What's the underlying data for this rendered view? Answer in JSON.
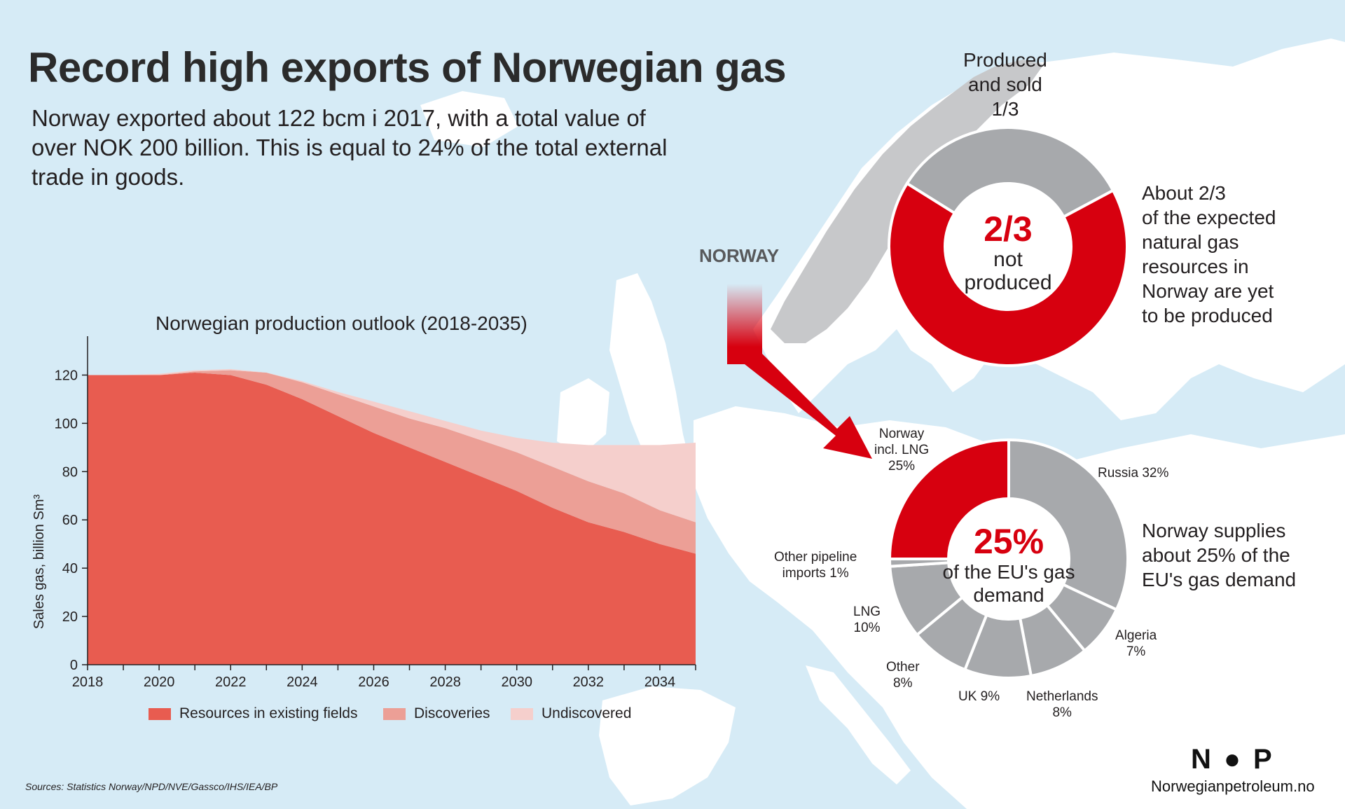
{
  "title": "Record high exports of Norwegian gas",
  "subtitle": "Norway exported about 122 bcm i 2017, with a total value of over NOK 200 billion. This is equal to 24% of the total external trade in goods.",
  "map_label": "NORWAY",
  "colors": {
    "existing": "#e85c50",
    "discoveries": "#ec9f96",
    "undiscovered": "#f5cfcc",
    "red": "#d7000f",
    "grey": "#a7a9ac",
    "land": "#ffffff",
    "sea": "#d6ebf6"
  },
  "chart_data": [
    {
      "type": "area",
      "stacked": true,
      "title": "Norwegian production outlook (2018-2035)",
      "xlabel": "",
      "ylabel": "Sales gas, billion Sm³",
      "x": [
        2018,
        2019,
        2020,
        2021,
        2022,
        2023,
        2024,
        2025,
        2026,
        2027,
        2028,
        2029,
        2030,
        2031,
        2032,
        2033,
        2034,
        2035
      ],
      "xticks": [
        "2018",
        "2020",
        "2022",
        "2024",
        "2026",
        "2028",
        "2030",
        "2032",
        "2034"
      ],
      "yticks": [
        "0",
        "20",
        "40",
        "60",
        "80",
        "100",
        "120"
      ],
      "xlim": [
        2018,
        2035
      ],
      "ylim": [
        0,
        130
      ],
      "legend_position": "bottom",
      "series": [
        {
          "name": "Resources in existing fields",
          "values": [
            120,
            120,
            120,
            121,
            120,
            116,
            110,
            103,
            96,
            90,
            84,
            78,
            72,
            65,
            59,
            55,
            50,
            46
          ]
        },
        {
          "name": "Discoveries",
          "values": [
            0,
            0,
            0,
            0.5,
            2,
            5,
            7,
            9,
            11,
            12,
            14,
            15,
            16,
            17,
            17,
            16,
            14,
            13
          ]
        },
        {
          "name": "Undiscovered",
          "values": [
            0,
            0,
            0.5,
            0.5,
            0.5,
            0,
            0.5,
            1,
            2,
            3,
            3,
            4,
            6,
            10,
            15,
            20,
            27,
            33
          ]
        }
      ]
    },
    {
      "type": "pie",
      "subtype": "donut",
      "center_big": "2/3",
      "center_small": [
        "not",
        "produced"
      ],
      "slices": [
        {
          "label": "Produced and sold 1/3",
          "value": 33.3,
          "color": "#a7a9ac"
        },
        {
          "label": "not produced",
          "value": 66.7,
          "color": "#d7000f"
        }
      ],
      "top_label_lines": [
        "Produced",
        "and sold",
        "1/3"
      ],
      "side_text_lines": [
        "About 2/3",
        "of the expected",
        "natural gas",
        "resources in",
        "Norway are yet",
        "to be produced"
      ]
    },
    {
      "type": "pie",
      "subtype": "donut",
      "center_big": "25%",
      "center_small": [
        "of the EU's gas",
        "demand"
      ],
      "slices": [
        {
          "label": "Russia 32%",
          "value": 32,
          "color": "#a7a9ac"
        },
        {
          "label": "Algeria 7%",
          "value": 7,
          "color": "#a7a9ac"
        },
        {
          "label": "Netherlands 8%",
          "value": 8,
          "color": "#a7a9ac"
        },
        {
          "label": "UK 9%",
          "value": 9,
          "color": "#a7a9ac"
        },
        {
          "label": "Other 8%",
          "value": 8,
          "color": "#a7a9ac"
        },
        {
          "label": "LNG 10%",
          "value": 10,
          "color": "#a7a9ac"
        },
        {
          "label": "Other pipeline imports 1%",
          "value": 1,
          "color": "#a7a9ac"
        },
        {
          "label": "Norway incl. LNG 25%",
          "value": 25,
          "color": "#d7000f"
        }
      ],
      "side_text_lines": [
        "Norway supplies",
        "about 25% of the",
        "EU's gas demand"
      ]
    }
  ],
  "pie_labels": {
    "norway": [
      "Norway",
      "incl. LNG",
      "25%"
    ],
    "russia": [
      "Russia 32%"
    ],
    "algeria": [
      "Algeria",
      "7%"
    ],
    "netherlands": [
      "Netherlands",
      "8%"
    ],
    "uk": [
      "UK 9%"
    ],
    "other": [
      "Other",
      "8%"
    ],
    "lng": [
      "LNG",
      "10%"
    ],
    "other_pipeline": [
      "Other pipeline",
      "imports 1%"
    ]
  },
  "sources": "Sources: Statistics Norway/NPD/NVE/Gassco/IHS/IEA/BP",
  "logo_text": "N●P",
  "website": "Norwegianpetroleum.no"
}
